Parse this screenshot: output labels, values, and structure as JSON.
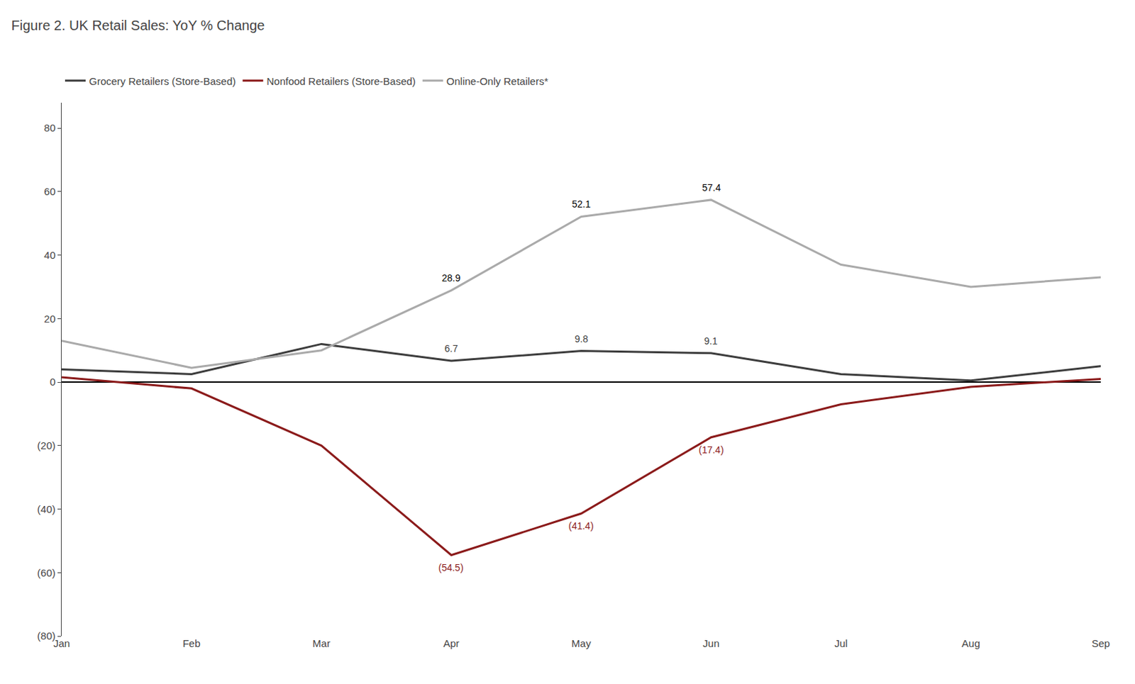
{
  "chart_data": {
    "type": "line",
    "title": "Figure 2. UK Retail Sales: YoY % Change",
    "categories": [
      "Jan",
      "Feb",
      "Mar",
      "Apr",
      "May",
      "Jun",
      "Jul",
      "Aug",
      "Sep"
    ],
    "series": [
      {
        "name": "Grocery Retailers (Store-Based)",
        "color": "#3d3d3d",
        "values": [
          4.0,
          2.5,
          12.0,
          6.7,
          9.8,
          9.1,
          2.5,
          0.5,
          5.0
        ],
        "value_labels": [
          null,
          null,
          null,
          "6.7",
          "9.8",
          "9.1",
          null,
          null,
          null
        ]
      },
      {
        "name": "Nonfood Retailers (Store-Based)",
        "color": "#8b1a1a",
        "values": [
          1.5,
          -2.0,
          -20.0,
          -54.5,
          -41.4,
          -17.4,
          -7.0,
          -1.5,
          1.0
        ],
        "value_labels": [
          null,
          null,
          null,
          "(54.5)",
          "(41.4)",
          "(17.4)",
          null,
          null,
          null
        ]
      },
      {
        "name": "Online-Only Retailers*",
        "color": "#aaaaaa",
        "values": [
          13.0,
          4.5,
          10.0,
          28.9,
          52.1,
          57.4,
          37.0,
          30.0,
          33.0
        ],
        "value_labels": [
          null,
          null,
          null,
          "28.9",
          "52.1",
          "57.4",
          null,
          null,
          null
        ]
      }
    ],
    "ylim": [
      -80,
      88
    ],
    "yticks": [
      {
        "value": -80,
        "label": "(80)"
      },
      {
        "value": -60,
        "label": "(60)"
      },
      {
        "value": -40,
        "label": "(40)"
      },
      {
        "value": -20,
        "label": "(20)"
      },
      0,
      20,
      40,
      60,
      80
    ],
    "grid": false,
    "legend": "upper left"
  }
}
